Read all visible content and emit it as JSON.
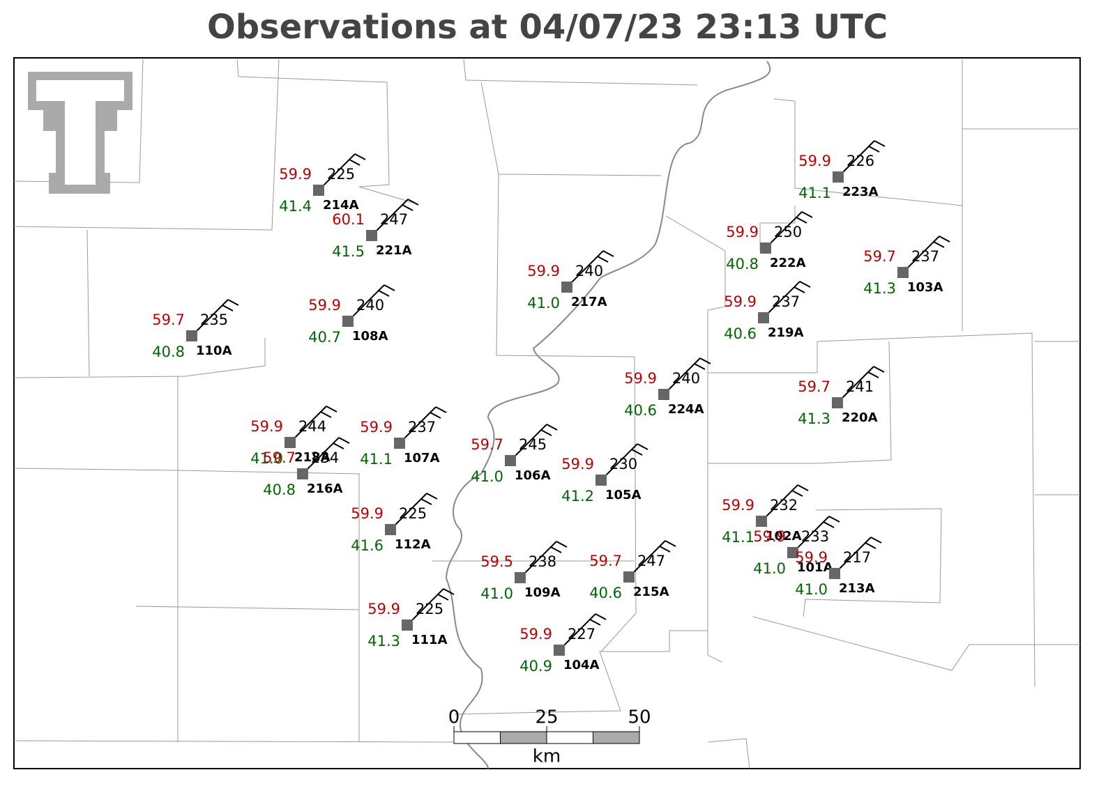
{
  "title": "Observations at 04/07/23 23:13 UTC",
  "stations": [
    {
      "id": "214A",
      "temperature": "59.9",
      "dewpoint": "41.4",
      "pressure": "225"
    },
    {
      "id": "221A",
      "temperature": "60.1",
      "dewpoint": "41.5",
      "pressure": "247"
    },
    {
      "id": "217A",
      "temperature": "59.9",
      "dewpoint": "41.0",
      "pressure": "240"
    },
    {
      "id": "108A",
      "temperature": "59.9",
      "dewpoint": "40.7",
      "pressure": "240"
    },
    {
      "id": "110A",
      "temperature": "59.7",
      "dewpoint": "40.8",
      "pressure": "235"
    },
    {
      "id": "223A",
      "temperature": "59.9",
      "dewpoint": "41.1",
      "pressure": "226"
    },
    {
      "id": "222A",
      "temperature": "59.9",
      "dewpoint": "40.8",
      "pressure": "250"
    },
    {
      "id": "103A",
      "temperature": "59.7",
      "dewpoint": "41.3",
      "pressure": "237"
    },
    {
      "id": "219A",
      "temperature": "59.9",
      "dewpoint": "40.6",
      "pressure": "237"
    },
    {
      "id": "224A",
      "temperature": "59.9",
      "dewpoint": "40.6",
      "pressure": "240"
    },
    {
      "id": "220A",
      "temperature": "59.7",
      "dewpoint": "41.3",
      "pressure": "241"
    },
    {
      "id": "218A",
      "temperature": "59.9",
      "dewpoint": "41.0",
      "pressure": "244"
    },
    {
      "id": "216A",
      "temperature": "59.7",
      "dewpoint": "40.8",
      "pressure": "234"
    },
    {
      "id": "107A",
      "temperature": "59.9",
      "dewpoint": "41.1",
      "pressure": "237"
    },
    {
      "id": "106A",
      "temperature": "59.7",
      "dewpoint": "41.0",
      "pressure": "245"
    },
    {
      "id": "105A",
      "temperature": "59.9",
      "dewpoint": "41.2",
      "pressure": "230"
    },
    {
      "id": "112A",
      "temperature": "59.9",
      "dewpoint": "41.6",
      "pressure": "225"
    },
    {
      "id": "102A",
      "temperature": "59.9",
      "dewpoint": "41.1",
      "pressure": "232"
    },
    {
      "id": "101A",
      "temperature": "59.9",
      "dewpoint": "41.0",
      "pressure": "233"
    },
    {
      "id": "213A",
      "temperature": "59.9",
      "dewpoint": "41.0",
      "pressure": "217"
    },
    {
      "id": "109A",
      "temperature": "59.5",
      "dewpoint": "41.0",
      "pressure": "238"
    },
    {
      "id": "215A",
      "temperature": "59.7",
      "dewpoint": "40.6",
      "pressure": "247"
    },
    {
      "id": "111A",
      "temperature": "59.9",
      "dewpoint": "41.3",
      "pressure": "225"
    },
    {
      "id": "104A",
      "temperature": "59.9",
      "dewpoint": "40.9",
      "pressure": "227"
    }
  ],
  "scale_bar": {
    "ticks": [
      0,
      25,
      50
    ],
    "unit": "km"
  }
}
